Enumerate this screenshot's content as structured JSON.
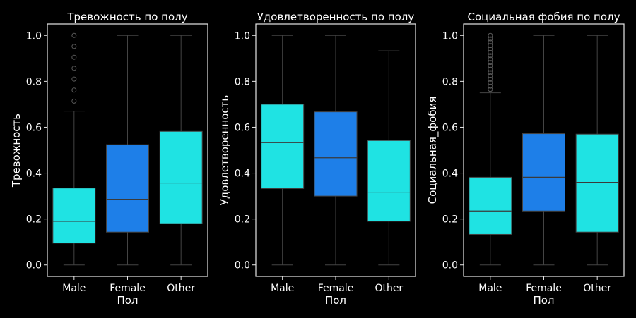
{
  "chart_data": [
    {
      "type": "box",
      "title": "Тревожность по полу",
      "xlabel": "Пол",
      "ylabel": "Тревожность",
      "ylim": [
        -0.05,
        1.05
      ],
      "yticks": [
        "0.0",
        "0.2",
        "0.4",
        "0.6",
        "0.8",
        "1.0"
      ],
      "categories": [
        "Male",
        "Female",
        "Other"
      ],
      "boxes": [
        {
          "category": "Male",
          "whisker_low": 0.0,
          "q1": 0.095,
          "median": 0.19,
          "q3": 0.335,
          "whisker_high": 0.67,
          "fill": "#1fe3e3",
          "outliers": [
            0.714,
            0.762,
            0.81,
            0.857,
            0.905,
            0.952,
            1.0
          ]
        },
        {
          "category": "Female",
          "whisker_low": 0.0,
          "q1": 0.143,
          "median": 0.286,
          "q3": 0.524,
          "whisker_high": 1.0,
          "fill": "#1e7fe8",
          "outliers": []
        },
        {
          "category": "Other",
          "whisker_low": 0.0,
          "q1": 0.18,
          "median": 0.357,
          "q3": 0.582,
          "whisker_high": 1.0,
          "fill": "#1fe3e3",
          "outliers": []
        }
      ]
    },
    {
      "type": "box",
      "title": "Удовлетворенность по полу",
      "xlabel": "Пол",
      "ylabel": "Удовлетворенность",
      "ylim": [
        -0.05,
        1.05
      ],
      "yticks": [
        "0.0",
        "0.2",
        "0.4",
        "0.6",
        "0.8",
        "1.0"
      ],
      "categories": [
        "Male",
        "Female",
        "Other"
      ],
      "boxes": [
        {
          "category": "Male",
          "whisker_low": 0.0,
          "q1": 0.333,
          "median": 0.533,
          "q3": 0.7,
          "whisker_high": 1.0,
          "fill": "#1fe3e3",
          "outliers": []
        },
        {
          "category": "Female",
          "whisker_low": 0.0,
          "q1": 0.3,
          "median": 0.467,
          "q3": 0.667,
          "whisker_high": 1.0,
          "fill": "#1e7fe8",
          "outliers": []
        },
        {
          "category": "Other",
          "whisker_low": 0.0,
          "q1": 0.19,
          "median": 0.317,
          "q3": 0.542,
          "whisker_high": 0.933,
          "fill": "#1fe3e3",
          "outliers": []
        }
      ]
    },
    {
      "type": "box",
      "title": "Социальная фобия по полу",
      "xlabel": "Пол",
      "ylabel": "Социальная_фобия",
      "ylim": [
        -0.05,
        1.05
      ],
      "yticks": [
        "0.0",
        "0.2",
        "0.4",
        "0.6",
        "0.8",
        "1.0"
      ],
      "categories": [
        "Male",
        "Female",
        "Other"
      ],
      "boxes": [
        {
          "category": "Male",
          "whisker_low": 0.0,
          "q1": 0.133,
          "median": 0.235,
          "q3": 0.382,
          "whisker_high": 0.75,
          "fill": "#1fe3e3",
          "outliers": [
            0.765,
            0.779,
            0.794,
            0.809,
            0.824,
            0.838,
            0.853,
            0.868,
            0.882,
            0.897,
            0.912,
            0.926,
            0.941,
            0.956,
            0.971,
            0.985,
            1.0
          ]
        },
        {
          "category": "Female",
          "whisker_low": 0.0,
          "q1": 0.235,
          "median": 0.382,
          "q3": 0.572,
          "whisker_high": 1.0,
          "fill": "#1e7fe8",
          "outliers": []
        },
        {
          "category": "Other",
          "whisker_low": 0.0,
          "q1": 0.143,
          "median": 0.36,
          "q3": 0.57,
          "whisker_high": 1.0,
          "fill": "#1fe3e3",
          "outliers": []
        }
      ]
    }
  ],
  "colors": {
    "background": "#000000",
    "frame": "#e6e6e6",
    "text": "#ffffff",
    "whisker": "#444444",
    "median": "#3a3a3a",
    "outlier": "#5a5a5a"
  }
}
